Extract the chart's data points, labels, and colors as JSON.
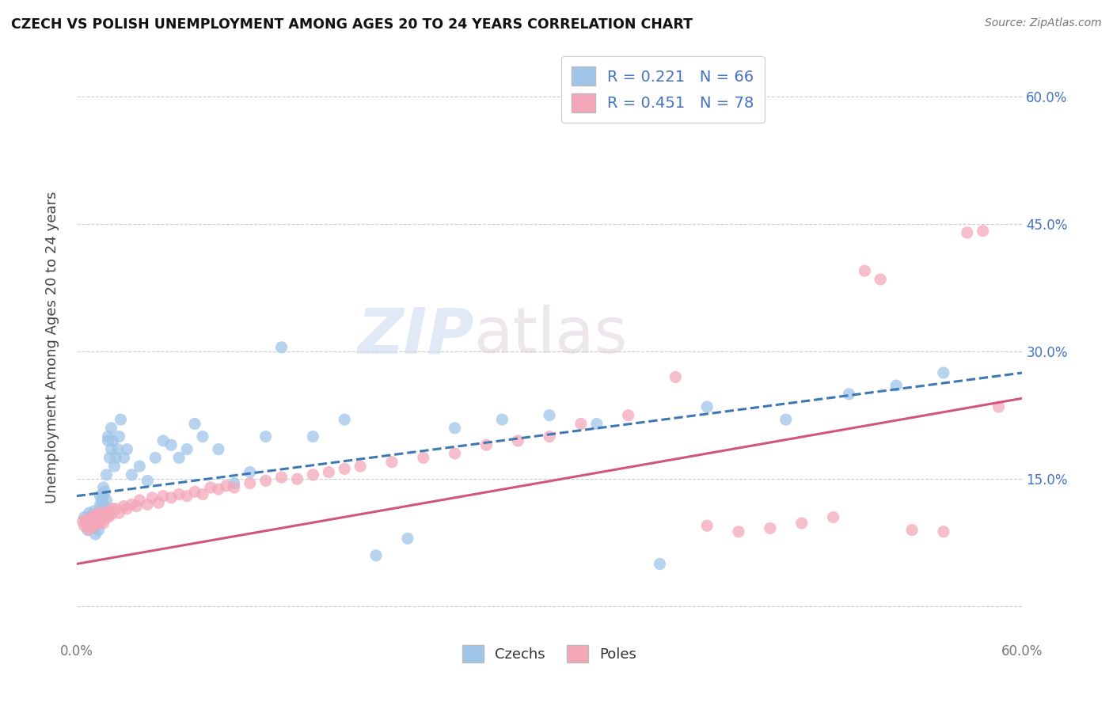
{
  "title": "CZECH VS POLISH UNEMPLOYMENT AMONG AGES 20 TO 24 YEARS CORRELATION CHART",
  "source": "Source: ZipAtlas.com",
  "ylabel": "Unemployment Among Ages 20 to 24 years",
  "xlim": [
    0.0,
    0.6
  ],
  "ylim": [
    -0.04,
    0.65
  ],
  "xticks": [
    0.0,
    0.1,
    0.2,
    0.3,
    0.4,
    0.5,
    0.6
  ],
  "xticklabels": [
    "0.0%",
    "",
    "",
    "",
    "",
    "",
    "60.0%"
  ],
  "yticks": [
    0.0,
    0.15,
    0.3,
    0.45,
    0.6
  ],
  "yticklabels": [
    "",
    "15.0%",
    "30.0%",
    "45.0%",
    "60.0%"
  ],
  "czech_color": "#9fc5e8",
  "polish_color": "#f4a7b9",
  "czech_line_color": "#3d78b5",
  "polish_line_color": "#d1567a",
  "R_czech": 0.221,
  "N_czech": 66,
  "R_polish": 0.451,
  "N_polish": 78,
  "watermark_zip": "ZIP",
  "watermark_atlas": "atlas",
  "legend_labels": [
    "Czechs",
    "Poles"
  ],
  "czech_scatter_x": [
    0.005,
    0.007,
    0.008,
    0.01,
    0.01,
    0.01,
    0.011,
    0.012,
    0.012,
    0.013,
    0.013,
    0.014,
    0.014,
    0.015,
    0.015,
    0.015,
    0.016,
    0.016,
    0.017,
    0.017,
    0.018,
    0.018,
    0.019,
    0.019,
    0.02,
    0.02,
    0.021,
    0.022,
    0.022,
    0.023,
    0.024,
    0.025,
    0.026,
    0.027,
    0.028,
    0.03,
    0.032,
    0.035,
    0.04,
    0.045,
    0.05,
    0.055,
    0.06,
    0.065,
    0.07,
    0.075,
    0.08,
    0.09,
    0.1,
    0.11,
    0.12,
    0.13,
    0.15,
    0.17,
    0.19,
    0.21,
    0.24,
    0.27,
    0.3,
    0.33,
    0.37,
    0.4,
    0.45,
    0.49,
    0.52,
    0.55
  ],
  "czech_scatter_y": [
    0.105,
    0.09,
    0.11,
    0.095,
    0.1,
    0.108,
    0.112,
    0.085,
    0.095,
    0.1,
    0.105,
    0.09,
    0.11,
    0.12,
    0.13,
    0.115,
    0.125,
    0.115,
    0.14,
    0.13,
    0.135,
    0.118,
    0.125,
    0.155,
    0.195,
    0.2,
    0.175,
    0.185,
    0.21,
    0.195,
    0.165,
    0.175,
    0.185,
    0.2,
    0.22,
    0.175,
    0.185,
    0.155,
    0.165,
    0.148,
    0.175,
    0.195,
    0.19,
    0.175,
    0.185,
    0.215,
    0.2,
    0.185,
    0.145,
    0.158,
    0.2,
    0.305,
    0.2,
    0.22,
    0.06,
    0.08,
    0.21,
    0.22,
    0.225,
    0.215,
    0.05,
    0.235,
    0.22,
    0.25,
    0.26,
    0.275
  ],
  "polish_scatter_x": [
    0.004,
    0.005,
    0.006,
    0.007,
    0.007,
    0.008,
    0.008,
    0.009,
    0.01,
    0.01,
    0.011,
    0.011,
    0.012,
    0.012,
    0.013,
    0.013,
    0.014,
    0.014,
    0.015,
    0.015,
    0.016,
    0.017,
    0.017,
    0.018,
    0.018,
    0.02,
    0.02,
    0.022,
    0.023,
    0.025,
    0.027,
    0.03,
    0.032,
    0.035,
    0.038,
    0.04,
    0.045,
    0.048,
    0.052,
    0.055,
    0.06,
    0.065,
    0.07,
    0.075,
    0.08,
    0.085,
    0.09,
    0.095,
    0.1,
    0.11,
    0.12,
    0.13,
    0.14,
    0.15,
    0.16,
    0.17,
    0.18,
    0.2,
    0.22,
    0.24,
    0.26,
    0.28,
    0.3,
    0.32,
    0.35,
    0.38,
    0.4,
    0.42,
    0.44,
    0.46,
    0.48,
    0.5,
    0.51,
    0.53,
    0.55,
    0.565,
    0.575,
    0.585
  ],
  "polish_scatter_y": [
    0.1,
    0.095,
    0.102,
    0.095,
    0.1,
    0.09,
    0.098,
    0.095,
    0.1,
    0.105,
    0.095,
    0.102,
    0.1,
    0.108,
    0.098,
    0.105,
    0.1,
    0.11,
    0.098,
    0.105,
    0.105,
    0.098,
    0.108,
    0.105,
    0.11,
    0.105,
    0.112,
    0.108,
    0.115,
    0.115,
    0.11,
    0.118,
    0.115,
    0.12,
    0.118,
    0.125,
    0.12,
    0.128,
    0.122,
    0.13,
    0.128,
    0.132,
    0.13,
    0.135,
    0.132,
    0.14,
    0.138,
    0.142,
    0.14,
    0.145,
    0.148,
    0.152,
    0.15,
    0.155,
    0.158,
    0.162,
    0.165,
    0.17,
    0.175,
    0.18,
    0.19,
    0.195,
    0.2,
    0.215,
    0.225,
    0.27,
    0.095,
    0.088,
    0.092,
    0.098,
    0.105,
    0.395,
    0.385,
    0.09,
    0.088,
    0.44,
    0.442,
    0.235
  ]
}
